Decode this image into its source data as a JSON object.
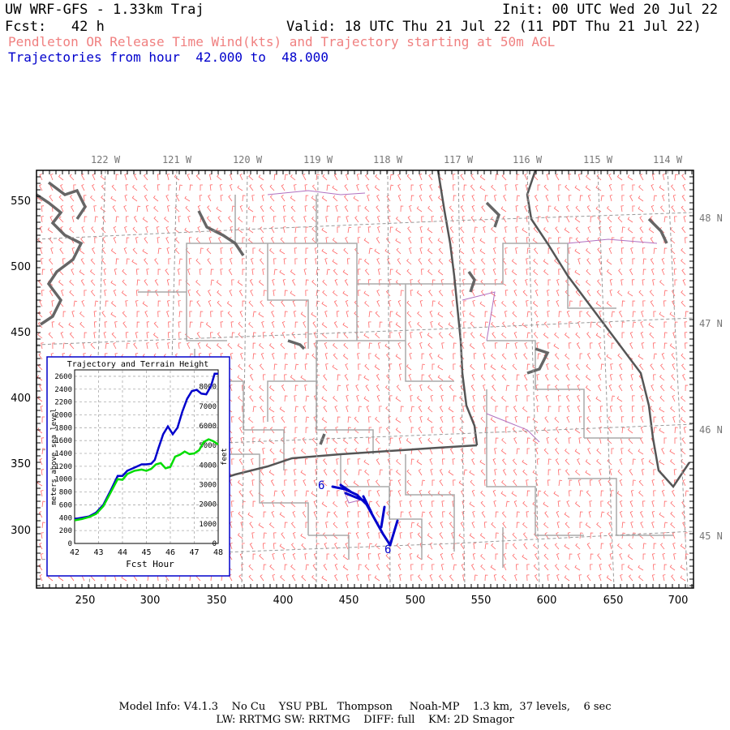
{
  "header": {
    "model_title": "UW WRF-GFS - 1.33km Traj",
    "init": "Init: 00 UTC Wed 20 Jul 22",
    "fcst": "Fcst:   42 h",
    "valid": "Valid: 18 UTC Thu 21 Jul 22 (11 PDT Thu 21 Jul 22)",
    "subtitle": "Pendleton OR Release Time Wind(kts) and Trajectory starting at 50m AGL",
    "traj_hours": "Trajectories from hour  42.000 to  48.000"
  },
  "colors": {
    "subtitle": "#f08080",
    "traj_hours": "#0000cc",
    "trajectory": "#0000cc",
    "terrain": "#00dd00",
    "barbs": "#ff6666",
    "county": "#aaaaaa",
    "state": "#555555",
    "water": "#666666",
    "grid_gray": "#999999"
  },
  "map": {
    "lon_labels": [
      "122 W",
      "121 W",
      "120 W",
      "119 W",
      "118 W",
      "117 W",
      "116 W",
      "115 W",
      "114 W"
    ],
    "lat_labels": [
      "48 N",
      "47 N",
      "46 N",
      "45 N"
    ],
    "y_ticks": [
      "550",
      "500",
      "450",
      "400",
      "350",
      "300"
    ],
    "x_ticks": [
      "250",
      "300",
      "350",
      "400",
      "450",
      "500",
      "550",
      "600",
      "650",
      "700"
    ],
    "traj_start_label": "6",
    "traj_end_label": "6"
  },
  "inset": {
    "title": "Trajectory and Terrain Height",
    "ylabel_left": "meters above sea level",
    "ylabel_right": "feet",
    "xlabel": "Fcst Hour",
    "x_ticks": [
      "42",
      "43",
      "44",
      "45",
      "46",
      "47",
      "48"
    ],
    "y_left_ticks": [
      "0",
      "200",
      "400",
      "600",
      "800",
      "1000",
      "1200",
      "1400",
      "1600",
      "1800",
      "2000",
      "2200",
      "2400",
      "2600"
    ],
    "y_right_ticks": [
      "0",
      "1000",
      "2000",
      "3000",
      "4000",
      "5000",
      "6000",
      "7000",
      "8000"
    ]
  },
  "chart_data": {
    "type": "line",
    "xlim": [
      42,
      48
    ],
    "ylim": [
      0,
      2700
    ],
    "series": [
      {
        "x": [
          42,
          42.3,
          42.6,
          42.9,
          43.2,
          43.5,
          43.8,
          44.0,
          44.2,
          44.5,
          44.8,
          45.0,
          45.2,
          45.35,
          45.5,
          45.7,
          45.9,
          46.1,
          46.3,
          46.5,
          46.7,
          46.9,
          47.1,
          47.3,
          47.5,
          47.7,
          47.85,
          48
        ],
        "y": [
          380,
          400,
          420,
          480,
          600,
          820,
          1050,
          1050,
          1130,
          1180,
          1230,
          1230,
          1240,
          1300,
          1480,
          1700,
          1820,
          1700,
          1800,
          2050,
          2250,
          2370,
          2390,
          2330,
          2320,
          2450,
          2640,
          2640
        ]
      },
      {
        "x": [
          42,
          42.3,
          42.6,
          42.9,
          43.2,
          43.5,
          43.8,
          44.0,
          44.2,
          44.5,
          44.8,
          45.0,
          45.2,
          45.4,
          45.6,
          45.8,
          46.0,
          46.2,
          46.4,
          46.6,
          46.8,
          47.0,
          47.2,
          47.4,
          47.6,
          47.8,
          48
        ],
        "y": [
          360,
          380,
          410,
          460,
          580,
          790,
          1000,
          990,
          1080,
          1130,
          1150,
          1130,
          1160,
          1230,
          1250,
          1170,
          1190,
          1350,
          1380,
          1430,
          1390,
          1400,
          1450,
          1580,
          1620,
          1590,
          1540
        ]
      }
    ]
  },
  "footer": {
    "line1": "Model Info: V4.1.3    No Cu    YSU PBL   Thompson     Noah-MP    1.3 km,  37 levels,    6 sec",
    "line2": "LW: RRTMG SW: RRTMG    DIFF: full    KM: 2D Smagor"
  }
}
